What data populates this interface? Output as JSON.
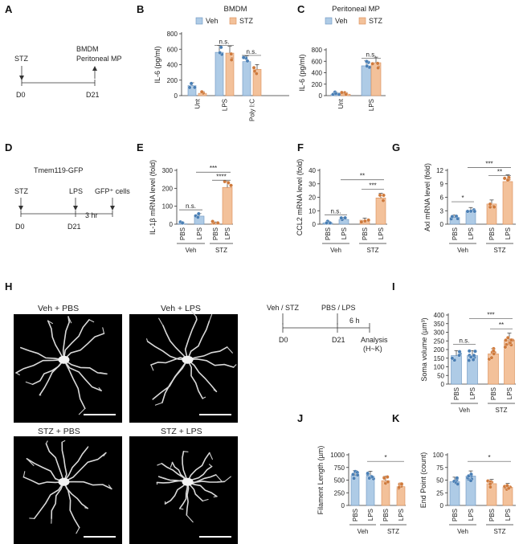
{
  "colors": {
    "veh": "#aecbe6",
    "veh_edge": "#6a94c0",
    "veh_dot": "#4a7fb5",
    "stz": "#f3c19a",
    "stz_edge": "#d98c55",
    "stz_dot": "#cf7a3c"
  },
  "panels": {
    "A": {
      "label": "A",
      "stz": "STZ",
      "d0": "D0",
      "d21": "D21",
      "out1": "BMDM",
      "out2": "Peritoneal MP"
    },
    "D": {
      "label": "D",
      "title": "Tmem119-GFP",
      "stz": "STZ",
      "lps": "LPS",
      "gfp": "GFP⁺ cells",
      "d0": "D0",
      "d21": "D21",
      "hr": "3 hr"
    },
    "H": {
      "label": "H",
      "titles": [
        "Veh + PBS",
        "Veh + LPS",
        "STZ + PBS",
        "STZ + LPS"
      ],
      "tl_top": "Veh / STZ",
      "tl_mid": "PBS / LPS",
      "d0": "D0",
      "d21": "D21",
      "hr": "6 h",
      "analysis": "Analysis",
      "analysis2": "(H~K)"
    }
  },
  "chart_data": [
    {
      "panel": "B",
      "type": "bar",
      "title": "BMDM",
      "ylabel": "IL-6 (pg/ml)",
      "ylim": [
        0,
        800
      ],
      "yticks": [
        "0",
        "200",
        "400",
        "600",
        "800"
      ],
      "categories": [
        "Unt",
        "LPS",
        "Poly I:C"
      ],
      "series": [
        {
          "name": "Veh",
          "values": [
            130,
            560,
            440
          ]
        },
        {
          "name": "STZ",
          "values": [
            30,
            550,
            340
          ]
        }
      ],
      "annotations": [
        "n.s.",
        "n.s."
      ]
    },
    {
      "panel": "C",
      "type": "bar",
      "title": "Peritoneal MP",
      "ylabel": "IL-6 (pg/ml)",
      "ylim": [
        0,
        800
      ],
      "yticks": [
        "0",
        "200",
        "400",
        "600",
        "800"
      ],
      "categories": [
        "Unt",
        "LPS"
      ],
      "series": [
        {
          "name": "Veh",
          "values": [
            25,
            520
          ]
        },
        {
          "name": "STZ",
          "values": [
            25,
            575
          ]
        }
      ],
      "annotations": [
        "n.s."
      ]
    },
    {
      "panel": "E",
      "type": "bar",
      "ylabel": "IL-1β mRNA level (fold)",
      "ylim": [
        0,
        300
      ],
      "yticks": [
        "0",
        "100",
        "200",
        "300"
      ],
      "categories": [
        "PBS",
        "LPS",
        "PBS",
        "LPS"
      ],
      "groups": [
        "Veh",
        "STZ"
      ],
      "values": [
        2,
        45,
        3,
        205
      ],
      "annotations": [
        "n.s.",
        "****",
        "***"
      ]
    },
    {
      "panel": "F",
      "type": "bar",
      "ylabel": "CCL2 mRNA level (fold)",
      "ylim": [
        0,
        40
      ],
      "yticks": [
        "0",
        "10",
        "20",
        "30",
        "40"
      ],
      "categories": [
        "PBS",
        "LPS",
        "PBS",
        "LPS"
      ],
      "groups": [
        "Veh",
        "STZ"
      ],
      "values": [
        1,
        3.5,
        3,
        19.5
      ],
      "annotations": [
        "n.s.",
        "***",
        "**"
      ]
    },
    {
      "panel": "G",
      "type": "bar",
      "ylabel": "Axl mRNA level (fold)",
      "ylim": [
        0,
        12
      ],
      "yticks": [
        "0",
        "3",
        "6",
        "9",
        "12"
      ],
      "categories": [
        "PBS",
        "LPS",
        "PBS",
        "LPS"
      ],
      "groups": [
        "Veh",
        "STZ"
      ],
      "values": [
        1.5,
        3,
        4.5,
        9.5
      ],
      "annotations": [
        "*",
        "**",
        "***"
      ]
    },
    {
      "panel": "I",
      "type": "bar",
      "ylabel": "Soma volume (µm³)",
      "ylim": [
        0,
        400
      ],
      "yticks": [
        "0",
        "50",
        "100",
        "150",
        "200",
        "250",
        "300",
        "350",
        "400"
      ],
      "categories": [
        "PBS",
        "LPS",
        "PBS",
        "LPS"
      ],
      "groups": [
        "Veh",
        "STZ"
      ],
      "values": [
        165,
        165,
        175,
        255
      ],
      "annotations": [
        "n.s.",
        "**",
        "***"
      ]
    },
    {
      "panel": "J",
      "type": "bar",
      "ylabel": "Filament Length (µm)",
      "ylim": [
        0,
        1000
      ],
      "yticks": [
        "0",
        "250",
        "500",
        "750",
        "1000"
      ],
      "categories": [
        "PBS",
        "LPS",
        "PBS",
        "LPS"
      ],
      "groups": [
        "Veh",
        "STZ"
      ],
      "values": [
        590,
        575,
        490,
        370
      ],
      "annotations": [
        "*"
      ]
    },
    {
      "panel": "K",
      "type": "bar",
      "ylabel": "End Point (count)",
      "ylim": [
        0,
        100
      ],
      "yticks": [
        "0",
        "25",
        "50",
        "75",
        "100"
      ],
      "categories": [
        "PBS",
        "LPS",
        "PBS",
        "LPS"
      ],
      "groups": [
        "Veh",
        "STZ"
      ],
      "values": [
        47,
        58,
        43,
        36
      ],
      "annotations": [
        "*"
      ]
    }
  ]
}
